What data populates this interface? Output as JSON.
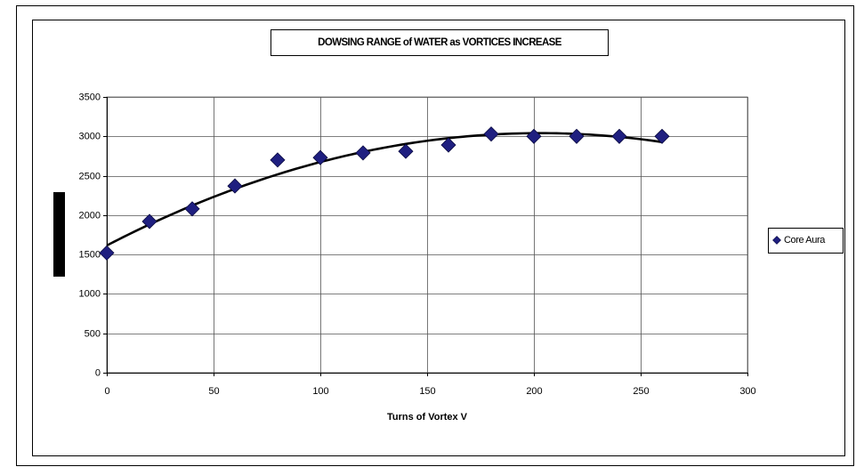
{
  "chart_data": {
    "type": "scatter",
    "title": "DOWSING RANGE of WATER as VORTICES INCREASE",
    "x_label": "Turns of Vortex V",
    "x": [
      0,
      20,
      40,
      60,
      80,
      100,
      120,
      140,
      160,
      180,
      200,
      220,
      240,
      260
    ],
    "series": [
      {
        "name": "Core Aura",
        "color": "#1f1f80",
        "values": [
          1520,
          1920,
          2080,
          2370,
          2700,
          2730,
          2790,
          2810,
          2890,
          3030,
          3000,
          3000,
          3000,
          3000
        ]
      }
    ],
    "trendline": {
      "type": "polynomial",
      "order": 2,
      "color": "#000000"
    },
    "xlim": [
      0,
      300
    ],
    "xticks": [
      0,
      50,
      100,
      150,
      200,
      250,
      300
    ],
    "ylim": [
      0,
      3500
    ],
    "yticks": [
      0,
      500,
      1000,
      1500,
      2000,
      2500,
      3000,
      3500
    ],
    "grid": true,
    "legend": "right"
  }
}
